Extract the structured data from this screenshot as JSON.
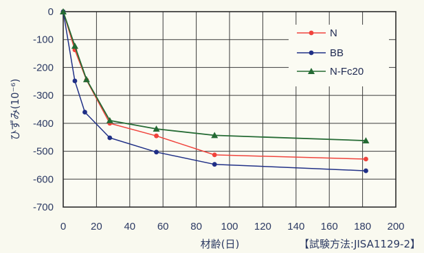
{
  "chart_data": {
    "type": "line",
    "xlabel": "材齢(日)",
    "ylabel": "ひずみ(10⁻⁶)",
    "note": "【試験方法:JISA1129-2】",
    "x_ticks": [
      "0",
      "20",
      "40",
      "60",
      "80",
      "100",
      "120",
      "140",
      "160",
      "180",
      "200"
    ],
    "y_ticks": [
      "0",
      "-100",
      "-200",
      "-300",
      "-400",
      "-500",
      "-600",
      "-700"
    ],
    "xlim": [
      0,
      200
    ],
    "ylim": [
      -700,
      0
    ],
    "grid": true,
    "legend_position": "top-right",
    "series": [
      {
        "name": "N",
        "color": "#f0433c",
        "marker": "circle",
        "x": [
          0,
          7,
          14,
          28,
          56,
          91,
          182
        ],
        "y": [
          0,
          -137,
          -245,
          -400,
          -445,
          -513,
          -528
        ]
      },
      {
        "name": "BB",
        "color": "#1f2f86",
        "marker": "circle",
        "x": [
          0,
          7,
          13,
          28,
          56,
          91,
          182
        ],
        "y": [
          0,
          -248,
          -360,
          -452,
          -503,
          -547,
          -570
        ]
      },
      {
        "name": "N-Fc20",
        "color": "#246a33",
        "marker": "triangle",
        "x": [
          0,
          7,
          14,
          28,
          56,
          91,
          182
        ],
        "y": [
          0,
          -123,
          -243,
          -390,
          -420,
          -443,
          -462
        ]
      }
    ]
  }
}
